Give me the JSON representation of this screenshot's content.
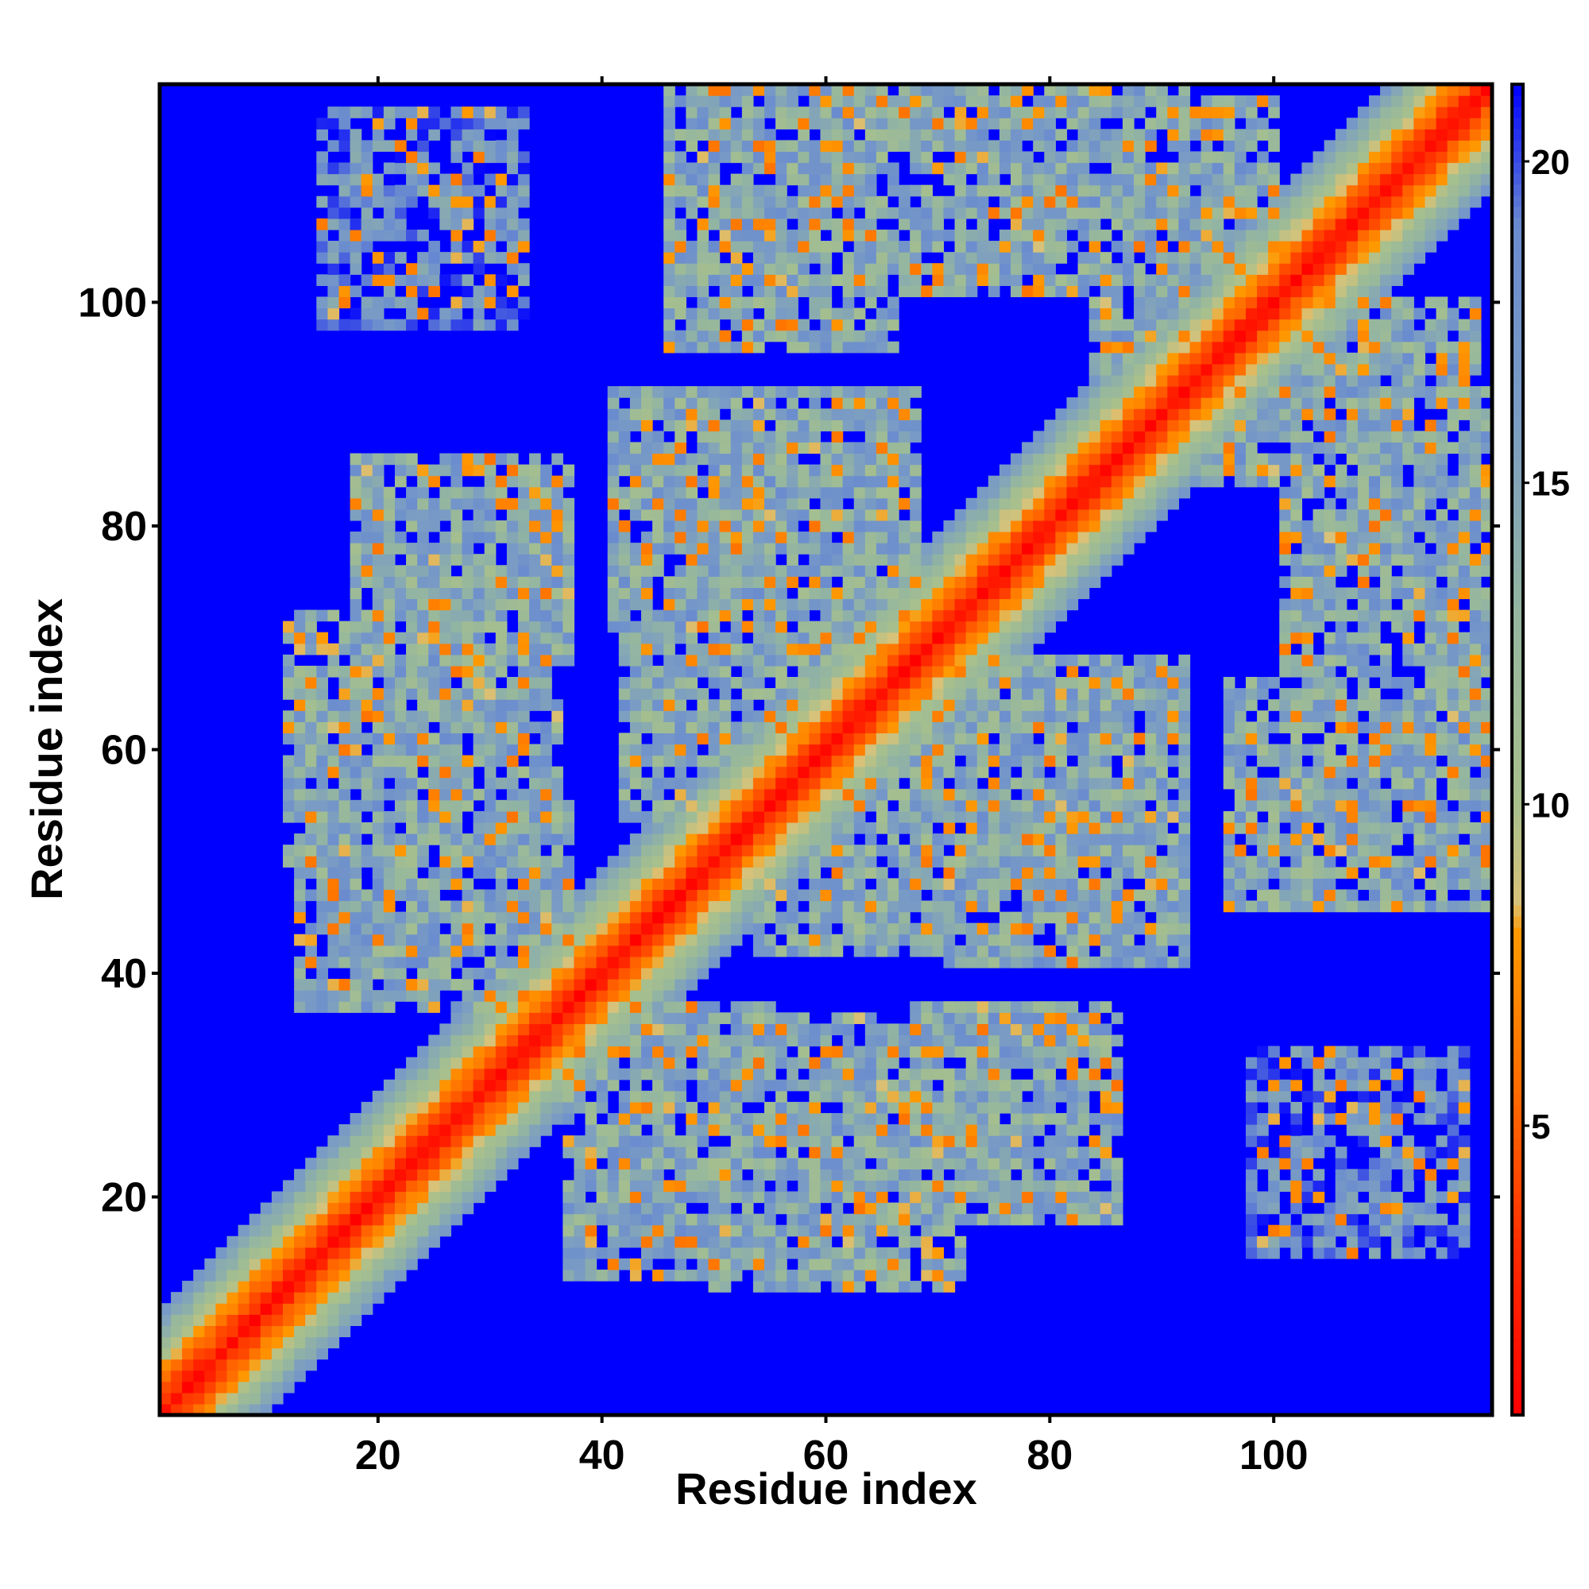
{
  "chart_data": {
    "type": "heatmap",
    "title": "",
    "xlabel": "Residue index",
    "ylabel": "Residue index",
    "n_residues": 119,
    "xlim": [
      0.5,
      119.5
    ],
    "ylim": [
      0.5,
      119.5
    ],
    "x_ticks": [
      20,
      40,
      60,
      80,
      100
    ],
    "y_ticks": [
      20,
      40,
      60,
      80,
      100
    ],
    "colorbar": {
      "range": [
        0.5,
        21.2
      ],
      "ticks": [
        5,
        10,
        15,
        20
      ],
      "scale": [
        {
          "value": 0.5,
          "color": "#ff0000"
        },
        {
          "value": 3.0,
          "color": "#ff2a00"
        },
        {
          "value": 5.5,
          "color": "#ff6a00"
        },
        {
          "value": 8.0,
          "color": "#ff9900"
        },
        {
          "value": 8.5,
          "color": "#d8c27a"
        },
        {
          "value": 10.0,
          "color": "#a8c08c"
        },
        {
          "value": 13.0,
          "color": "#94b6a0"
        },
        {
          "value": 16.0,
          "color": "#7a9cc4"
        },
        {
          "value": 19.0,
          "color": "#6a8ccf"
        },
        {
          "value": 21.2,
          "color": "#0000ff"
        }
      ]
    },
    "contact_blocks": [
      {
        "x": [
          37,
          55
        ],
        "y": [
          15,
          37
        ],
        "min_value": 10.5
      },
      {
        "x": [
          50,
          72
        ],
        "y": [
          12,
          33
        ],
        "min_value": 10.5
      },
      {
        "x": [
          64,
          84
        ],
        "y": [
          20,
          35
        ],
        "min_value": 10.5
      },
      {
        "x": [
          13,
          36
        ],
        "y": [
          37,
          64
        ],
        "min_value": 10.5
      },
      {
        "x": [
          18,
          37
        ],
        "y": [
          68,
          86
        ],
        "min_value": 10.5
      },
      {
        "x": [
          42,
          66
        ],
        "y": [
          54,
          73
        ],
        "min_value": 10.5
      },
      {
        "x": [
          41,
          68
        ],
        "y": [
          70,
          91
        ],
        "min_value": 10.5
      },
      {
        "x": [
          71,
          92
        ],
        "y": [
          41,
          68
        ],
        "min_value": 10.5
      },
      {
        "x": [
          46,
          66
        ],
        "y": [
          96,
          119
        ],
        "min_value": 10.5
      },
      {
        "x": [
          66,
          92
        ],
        "y": [
          101,
          119
        ],
        "min_value": 10.5
      },
      {
        "x": [
          96,
          119
        ],
        "y": [
          46,
          66
        ],
        "min_value": 10.5
      },
      {
        "x": [
          101,
          119
        ],
        "y": [
          66,
          92
        ],
        "min_value": 10.5
      },
      {
        "x": [
          94,
          118
        ],
        "y": [
          84,
          100
        ],
        "min_value": 10.5
      },
      {
        "x": [
          84,
          100
        ],
        "y": [
          94,
          118
        ],
        "min_value": 10.5
      },
      {
        "x": [
          15,
          33
        ],
        "y": [
          98,
          117
        ],
        "min_value": 14.0
      },
      {
        "x": [
          98,
          117
        ],
        "y": [
          15,
          33
        ],
        "min_value": 14.0
      }
    ]
  }
}
